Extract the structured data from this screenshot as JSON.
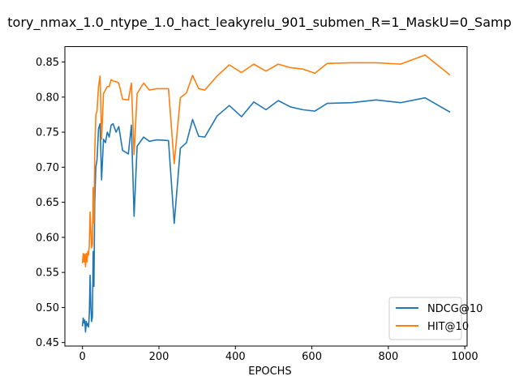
{
  "chart_data": {
    "type": "line",
    "title": "tory_nmax_1.0_ntype_1.0_hact_leakyrelu_901_submen_R=1_MaskU=0_Samp",
    "xlabel": "EPOCHS",
    "ylabel": "",
    "xlim": [
      -46,
      1006
    ],
    "ylim": [
      0.445,
      0.872
    ],
    "xticks": [
      0,
      200,
      400,
      600,
      800,
      1000
    ],
    "yticks": [
      0.45,
      0.5,
      0.55,
      0.6,
      0.65,
      0.7,
      0.75,
      0.8,
      0.85
    ],
    "grid": false,
    "legend_position": "lower-right",
    "series": [
      {
        "name": "NDCG@10",
        "color": "#1f77b4",
        "points": [
          [
            0,
            0.474
          ],
          [
            2,
            0.485
          ],
          [
            4,
            0.478
          ],
          [
            6,
            0.482
          ],
          [
            8,
            0.465
          ],
          [
            10,
            0.48
          ],
          [
            12,
            0.474
          ],
          [
            14,
            0.477
          ],
          [
            16,
            0.472
          ],
          [
            18,
            0.492
          ],
          [
            20,
            0.546
          ],
          [
            22,
            0.5
          ],
          [
            24,
            0.48
          ],
          [
            26,
            0.487
          ],
          [
            28,
            0.58
          ],
          [
            30,
            0.53
          ],
          [
            32,
            0.65
          ],
          [
            35,
            0.7
          ],
          [
            38,
            0.71
          ],
          [
            42,
            0.755
          ],
          [
            46,
            0.762
          ],
          [
            50,
            0.682
          ],
          [
            55,
            0.74
          ],
          [
            60,
            0.735
          ],
          [
            65,
            0.75
          ],
          [
            70,
            0.743
          ],
          [
            75,
            0.76
          ],
          [
            80,
            0.762
          ],
          [
            88,
            0.75
          ],
          [
            95,
            0.758
          ],
          [
            105,
            0.724
          ],
          [
            120,
            0.719
          ],
          [
            128,
            0.76
          ],
          [
            135,
            0.63
          ],
          [
            143,
            0.73
          ],
          [
            160,
            0.743
          ],
          [
            175,
            0.737
          ],
          [
            195,
            0.739
          ],
          [
            225,
            0.738
          ],
          [
            240,
            0.62
          ],
          [
            256,
            0.727
          ],
          [
            272,
            0.735
          ],
          [
            288,
            0.768
          ],
          [
            304,
            0.744
          ],
          [
            320,
            0.743
          ],
          [
            352,
            0.773
          ],
          [
            384,
            0.788
          ],
          [
            416,
            0.772
          ],
          [
            448,
            0.793
          ],
          [
            480,
            0.782
          ],
          [
            512,
            0.795
          ],
          [
            544,
            0.786
          ],
          [
            576,
            0.782
          ],
          [
            608,
            0.78
          ],
          [
            640,
            0.791
          ],
          [
            704,
            0.792
          ],
          [
            768,
            0.796
          ],
          [
            832,
            0.792
          ],
          [
            896,
            0.799
          ],
          [
            960,
            0.779
          ]
        ]
      },
      {
        "name": "HIT@10",
        "color": "#ff7f0e",
        "points": [
          [
            0,
            0.564
          ],
          [
            2,
            0.577
          ],
          [
            4,
            0.565
          ],
          [
            6,
            0.576
          ],
          [
            8,
            0.558
          ],
          [
            10,
            0.577
          ],
          [
            12,
            0.565
          ],
          [
            14,
            0.58
          ],
          [
            16,
            0.575
          ],
          [
            18,
            0.59
          ],
          [
            20,
            0.636
          ],
          [
            22,
            0.61
          ],
          [
            24,
            0.585
          ],
          [
            26,
            0.59
          ],
          [
            28,
            0.671
          ],
          [
            30,
            0.62
          ],
          [
            32,
            0.718
          ],
          [
            35,
            0.775
          ],
          [
            38,
            0.78
          ],
          [
            42,
            0.815
          ],
          [
            46,
            0.83
          ],
          [
            50,
            0.74
          ],
          [
            55,
            0.805
          ],
          [
            60,
            0.81
          ],
          [
            65,
            0.815
          ],
          [
            70,
            0.815
          ],
          [
            75,
            0.825
          ],
          [
            80,
            0.823
          ],
          [
            88,
            0.822
          ],
          [
            95,
            0.82
          ],
          [
            105,
            0.797
          ],
          [
            120,
            0.796
          ],
          [
            128,
            0.82
          ],
          [
            135,
            0.718
          ],
          [
            143,
            0.805
          ],
          [
            160,
            0.82
          ],
          [
            175,
            0.81
          ],
          [
            195,
            0.812
          ],
          [
            225,
            0.812
          ],
          [
            240,
            0.705
          ],
          [
            256,
            0.799
          ],
          [
            272,
            0.806
          ],
          [
            288,
            0.831
          ],
          [
            304,
            0.812
          ],
          [
            320,
            0.81
          ],
          [
            352,
            0.83
          ],
          [
            384,
            0.846
          ],
          [
            416,
            0.835
          ],
          [
            448,
            0.847
          ],
          [
            480,
            0.837
          ],
          [
            512,
            0.847
          ],
          [
            544,
            0.842
          ],
          [
            576,
            0.84
          ],
          [
            608,
            0.834
          ],
          [
            640,
            0.848
          ],
          [
            704,
            0.849
          ],
          [
            768,
            0.849
          ],
          [
            832,
            0.847
          ],
          [
            896,
            0.86
          ],
          [
            960,
            0.832
          ]
        ]
      }
    ]
  }
}
